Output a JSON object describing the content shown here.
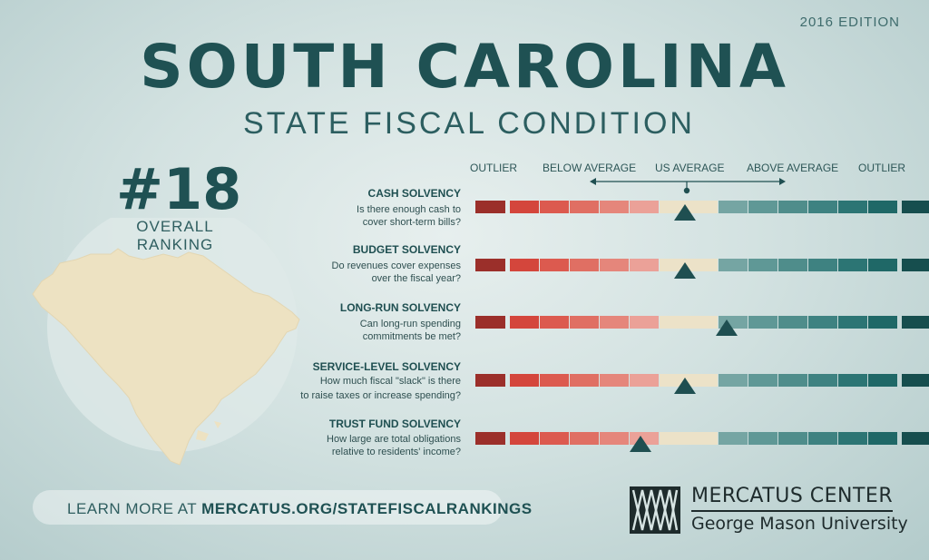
{
  "edition": "2016 EDITION",
  "title": "SOUTH CAROLINA",
  "subtitle": "STATE FISCAL CONDITION",
  "ranking": {
    "number": "#18",
    "label": "OVERALL RANKING"
  },
  "scale_labels": {
    "outlier_low": "OUTLIER",
    "below": "BELOW AVERAGE",
    "average": "US AVERAGE",
    "above": "ABOVE AVERAGE",
    "outlier_high": "OUTLIER"
  },
  "metrics": [
    {
      "name": "CASH SOLVENCY",
      "line1": "Is there enough cash to",
      "line2": "cover short-term bills?",
      "position": 0.5
    },
    {
      "name": "BUDGET SOLVENCY",
      "line1": "Do revenues cover expenses",
      "line2": "over the fiscal year?",
      "position": 0.5
    },
    {
      "name": "LONG-RUN SOLVENCY",
      "line1": "Can long-run spending",
      "line2": "commitments be met?",
      "position": 0.6
    },
    {
      "name": "SERVICE-LEVEL SOLVENCY",
      "line1": "How much fiscal \"slack\" is there",
      "line2": "to raise taxes or increase spending?",
      "position": 0.5
    },
    {
      "name": "TRUST FUND SOLVENCY",
      "line1": "How large are total obligations",
      "line2": "relative to residents' income?",
      "position": 0.395
    }
  ],
  "learn_more": {
    "prefix": "LEARN MORE AT ",
    "url": "MERCATUS.ORG/STATEFISCALRANKINGS"
  },
  "org": {
    "name": "MERCATUS CENTER",
    "sub": "George Mason University"
  },
  "colors": {
    "bar_segments": [
      "#9b2f2a",
      "#d4463c",
      "#dc5a4f",
      "#e06f63",
      "#e5867b",
      "#eba198",
      "#ece2c8",
      "#75a5a3",
      "#5f9896",
      "#4f8d8b",
      "#3e8281",
      "#2c7574",
      "#1f6867",
      "#164e4e"
    ],
    "marker": "#1f4f51",
    "title": "#1f5153",
    "state_fill": "#ede2c2"
  }
}
